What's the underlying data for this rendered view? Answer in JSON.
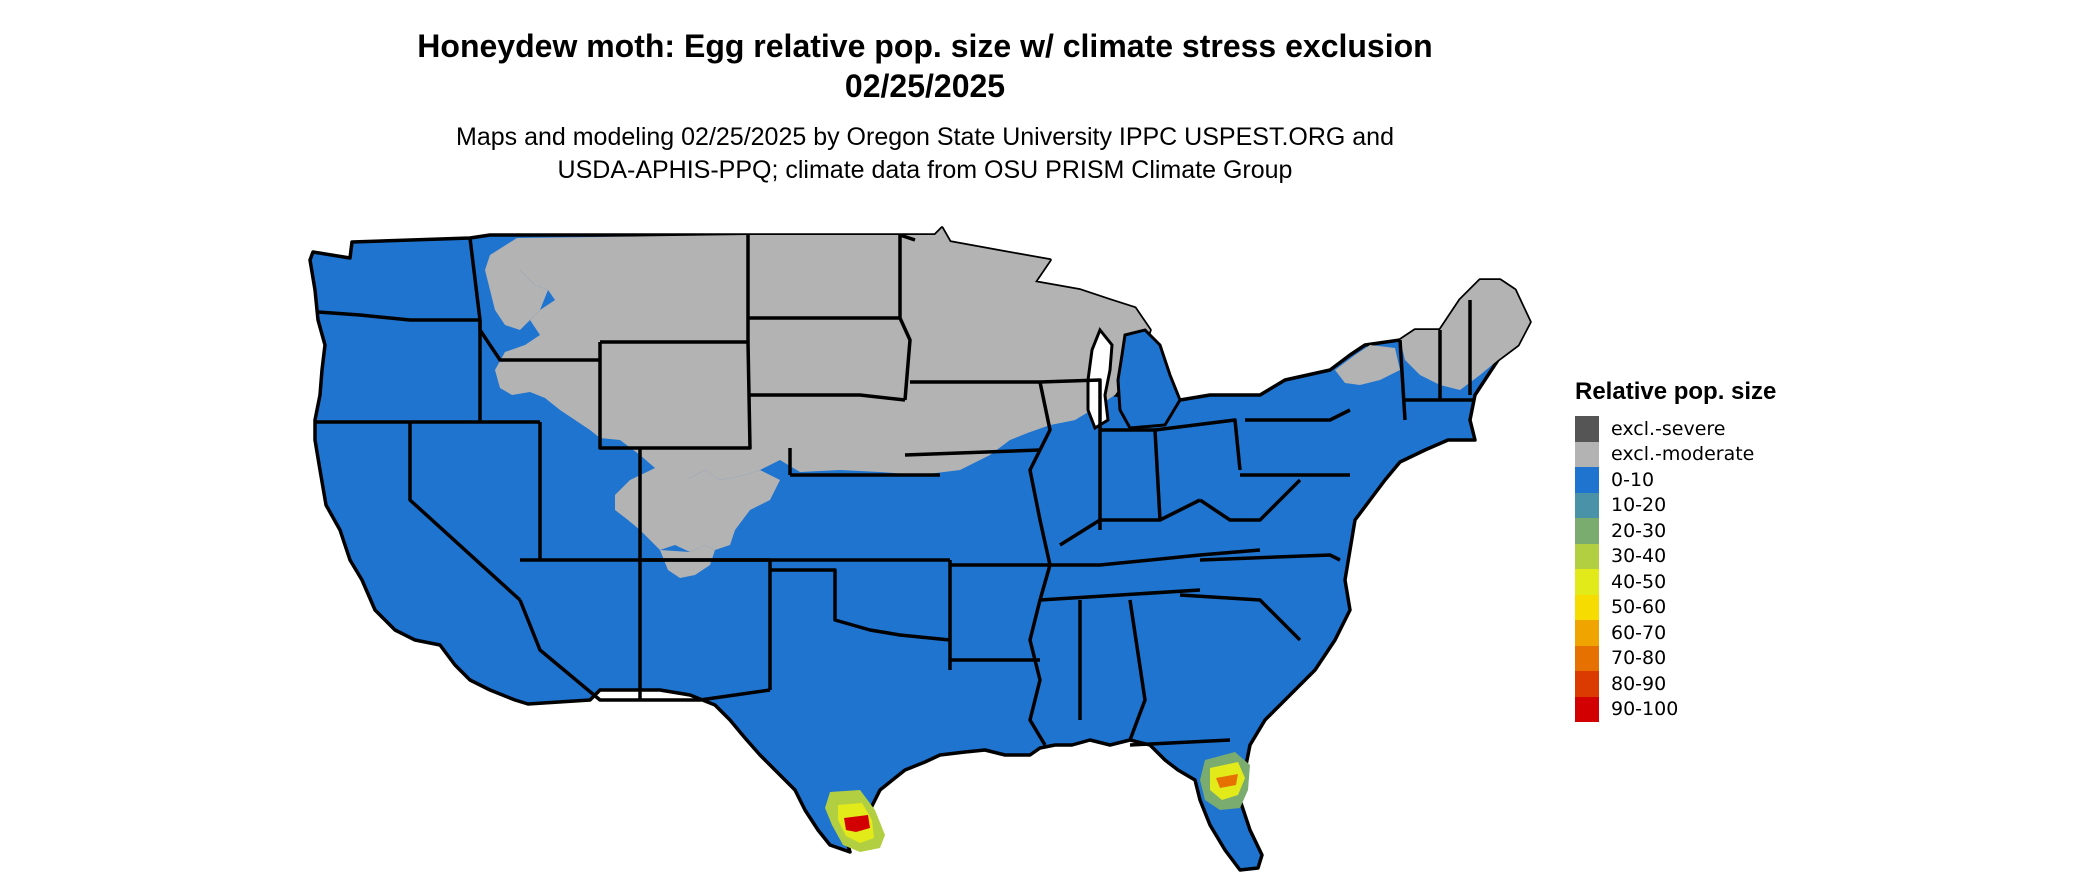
{
  "title_line1": "Honeydew moth: Egg relative pop. size w/ climate stress exclusion",
  "title_line2": "02/25/2025",
  "subtitle_line1": "Maps and modeling 02/25/2025 by Oregon State University IPPC USPEST.ORG and",
  "subtitle_line2": "USDA-APHIS-PPQ; climate data from OSU PRISM Climate Group",
  "legend": {
    "title": "Relative pop. size",
    "items": [
      {
        "label": "excl.-severe",
        "color": "#555555"
      },
      {
        "label": "excl.-moderate",
        "color": "#b3b3b3"
      },
      {
        "label": "0-10",
        "color": "#1f74d0"
      },
      {
        "label": "10-20",
        "color": "#4a92a8"
      },
      {
        "label": "20-30",
        "color": "#7aac70"
      },
      {
        "label": "30-40",
        "color": "#b2cf42"
      },
      {
        "label": "40-50",
        "color": "#e2ea1a"
      },
      {
        "label": "50-60",
        "color": "#f7dc00"
      },
      {
        "label": "60-70",
        "color": "#f0a400"
      },
      {
        "label": "70-80",
        "color": "#e67000"
      },
      {
        "label": "80-90",
        "color": "#dc3b00"
      },
      {
        "label": "90-100",
        "color": "#d20000"
      }
    ]
  },
  "colors": {
    "base": "#1f74d0",
    "excluded": "#b3b3b3",
    "border": "#000000"
  }
}
